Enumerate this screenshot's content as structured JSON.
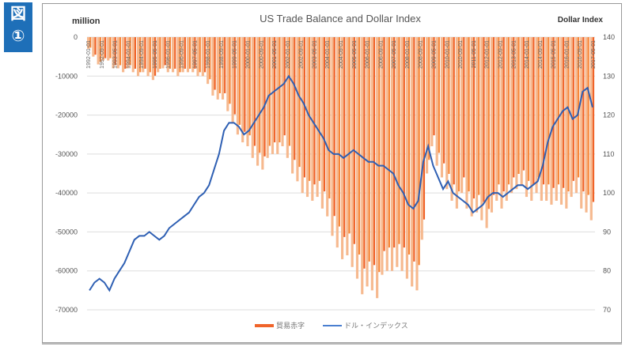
{
  "badge": {
    "line1": "図",
    "line2": "①"
  },
  "chart_data": {
    "type": "bar+line",
    "title": "US Trade Balance and Dollar Index",
    "ylabel_left": "million",
    "ylabel_right": "Dollar Index",
    "ylim_left": [
      -70000,
      0
    ],
    "ylim_right": [
      70,
      140
    ],
    "yticks_left": [
      "0",
      "-10000",
      "-20000",
      "-30000",
      "-40000",
      "-50000",
      "-60000",
      "-70000"
    ],
    "yticks_right": [
      "140",
      "130",
      "120",
      "110",
      "100",
      "90",
      "80",
      "70"
    ],
    "grid": true,
    "legend_position": "bottom",
    "xtick_labels": [
      "1992-01-01",
      "1992-09-01",
      "1993-05-01",
      "1994-01-01",
      "1994-09-01",
      "1995-05-01",
      "1996-01-01",
      "1996-09-01",
      "1997-05-01",
      "1998-01-01",
      "1998-09-01",
      "1999-05-01",
      "2000-01-01",
      "2000-09-01",
      "2001-05-01",
      "2002-01-01",
      "2002-09-01",
      "2003-05-01",
      "2004-01-01",
      "2004-09-01",
      "2005-05-01",
      "2006-01-01",
      "2006-09-01",
      "2007-05-01",
      "2008-01-01",
      "2008-09-01",
      "2009-05-01",
      "2010-01-01",
      "2010-09-01",
      "2011-05-01",
      "2012-01-01",
      "2012-09-01",
      "2013-05-01",
      "2014-01-01",
      "2014-09-01",
      "2015-05-01",
      "2016-01-01",
      "2016-09-01",
      "2017-05-01"
    ],
    "x_period": "quarterly 1992Q1-2017Q2 (approx.)",
    "series": [
      {
        "name": "貿易赤字",
        "type": "bar",
        "axis": "left",
        "color": "#f0642a",
        "values": [
          -3000,
          -5000,
          -7000,
          -6000,
          -6000,
          -8000,
          -8000,
          -9000,
          -8000,
          -9000,
          -10000,
          -9000,
          -10000,
          -11000,
          -9000,
          -8000,
          -9000,
          -9000,
          -10000,
          -9000,
          -9000,
          -9000,
          -10000,
          -10000,
          -12000,
          -15000,
          -16000,
          -16000,
          -19000,
          -22000,
          -25000,
          -27000,
          -28000,
          -31000,
          -33000,
          -34000,
          -31000,
          -30000,
          -30000,
          -28000,
          -31000,
          -35000,
          -37000,
          -40000,
          -41000,
          -42000,
          -41000,
          -44000,
          -46000,
          -51000,
          -54000,
          -57000,
          -56000,
          -59000,
          -62000,
          -66000,
          -64000,
          -65000,
          -67000,
          -61000,
          -60000,
          -60000,
          -59000,
          -60000,
          -62000,
          -64000,
          -65000,
          -52000,
          -35000,
          -28000,
          -33000,
          -36000,
          -39000,
          -42000,
          -44000,
          -40000,
          -44000,
          -46000,
          -45000,
          -47000,
          -49000,
          -45000,
          -42000,
          -44000,
          -42000,
          -40000,
          -39000,
          -38000,
          -41000,
          -42000,
          -40000,
          -42000,
          -42000,
          -43000,
          -42000,
          -43000,
          -44000,
          -41000,
          -40000,
          -44000,
          -45000,
          -47000
        ]
      },
      {
        "name": "ドル・インデックス",
        "type": "line",
        "axis": "right",
        "color": "#2e5fb3",
        "values": [
          75,
          77,
          78,
          77,
          75,
          78,
          80,
          82,
          85,
          88,
          89,
          89,
          90,
          89,
          88,
          89,
          91,
          92,
          93,
          94,
          95,
          97,
          99,
          100,
          102,
          106,
          110,
          116,
          118,
          118,
          117,
          115,
          116,
          118,
          120,
          122,
          125,
          126,
          127,
          128,
          130,
          128,
          125,
          123,
          120,
          118,
          116,
          114,
          111,
          110,
          110,
          109,
          110,
          111,
          110,
          109,
          108,
          108,
          107,
          107,
          106,
          105,
          102,
          100,
          97,
          96,
          98,
          108,
          112,
          107,
          104,
          101,
          103,
          100,
          99,
          98,
          97,
          95,
          96,
          97,
          99,
          100,
          100,
          99,
          100,
          101,
          102,
          102,
          101,
          102,
          103,
          107,
          113,
          117,
          119,
          121,
          122,
          119,
          120,
          126,
          127,
          122
        ]
      }
    ]
  }
}
